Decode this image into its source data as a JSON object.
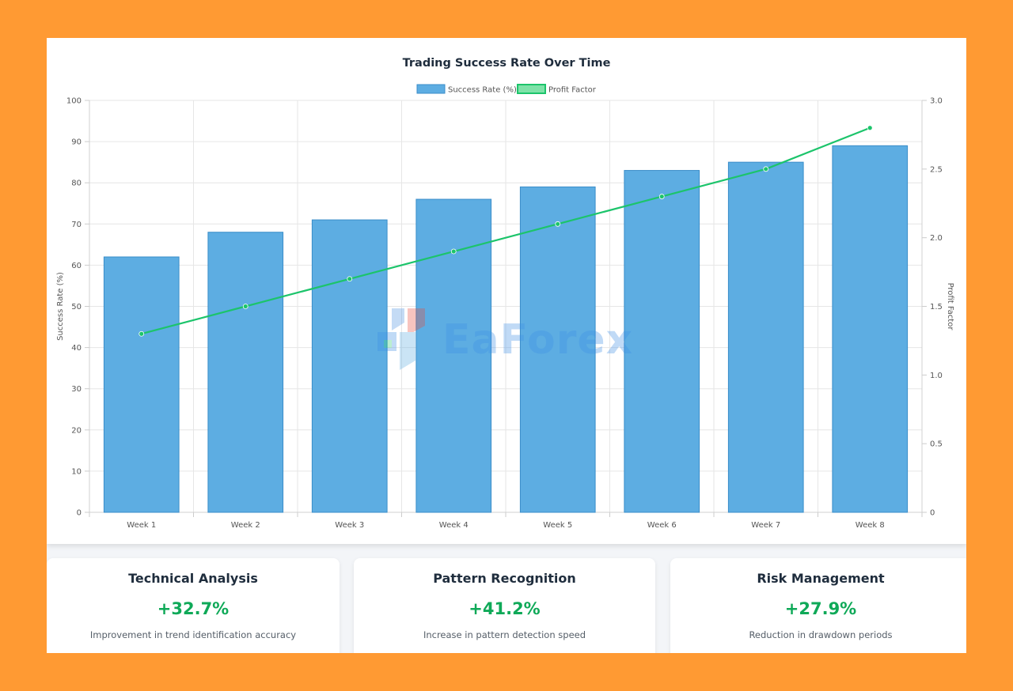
{
  "chart_data": {
    "type": "bar",
    "title": "Trading Success Rate Over Time",
    "categories": [
      "Week 1",
      "Week 2",
      "Week 3",
      "Week 4",
      "Week 5",
      "Week 6",
      "Week 7",
      "Week 8"
    ],
    "series": [
      {
        "name": "Success Rate (%)",
        "type": "bar",
        "axis": "left",
        "color": "#5DADE2",
        "border_color": "#3A8DC9",
        "values": [
          62,
          68,
          71,
          76,
          79,
          83,
          85,
          89
        ]
      },
      {
        "name": "Profit Factor",
        "type": "line",
        "axis": "right",
        "color": "#1CC46B",
        "values": [
          1.3,
          1.5,
          1.7,
          1.9,
          2.1,
          2.3,
          2.5,
          2.8
        ]
      }
    ],
    "ylabel": "Success Rate (%)",
    "ylim": [
      0,
      100
    ],
    "yticks": [
      0,
      10,
      20,
      30,
      40,
      50,
      60,
      70,
      80,
      90,
      100
    ],
    "y2label": "Profit Factor",
    "y2lim": [
      0,
      3.0
    ],
    "y2ticks": [
      0,
      0.5,
      1.0,
      1.5,
      2.0,
      2.5,
      3.0
    ],
    "y2tick_labels": [
      "0",
      "0.5",
      "1.0",
      "1.5",
      "2.0",
      "2.5",
      "3.0"
    ],
    "grid": true,
    "legend_position": "top-center"
  },
  "watermark": {
    "text": "EaForex"
  },
  "stats": [
    {
      "title": "Technical Analysis",
      "value": "+32.7%",
      "description": "Improvement in trend identification accuracy"
    },
    {
      "title": "Pattern Recognition",
      "value": "+41.2%",
      "description": "Increase in pattern detection speed"
    },
    {
      "title": "Risk Management",
      "value": "+27.9%",
      "description": "Reduction in drawdown periods"
    }
  ],
  "colors": {
    "positive": "#0FA958",
    "background": "#FF9A33"
  }
}
